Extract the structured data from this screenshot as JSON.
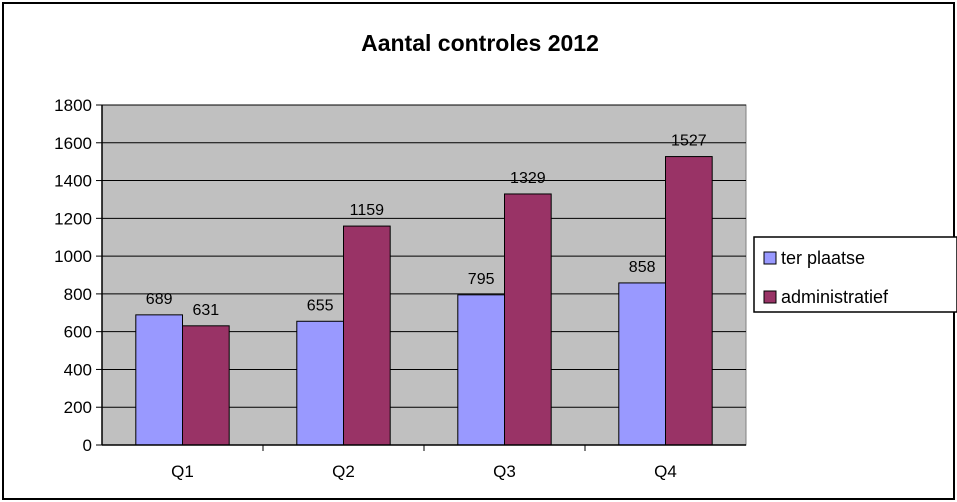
{
  "chart_data": {
    "type": "bar",
    "title": "Aantal controles 2012",
    "categories": [
      "Q1",
      "Q2",
      "Q3",
      "Q4"
    ],
    "series": [
      {
        "name": "ter plaatse",
        "values": [
          689,
          655,
          795,
          858
        ],
        "color": "#9999ff"
      },
      {
        "name": "administratief",
        "values": [
          631,
          1159,
          1329,
          1527
        ],
        "color": "#993366"
      }
    ],
    "ylim": [
      0,
      1800
    ],
    "yticks": [
      0,
      200,
      400,
      600,
      800,
      1000,
      1200,
      1400,
      1600,
      1800
    ],
    "grid": true,
    "plot_background": "#c0c0c0",
    "legend_position": "right",
    "data_labels": true
  }
}
